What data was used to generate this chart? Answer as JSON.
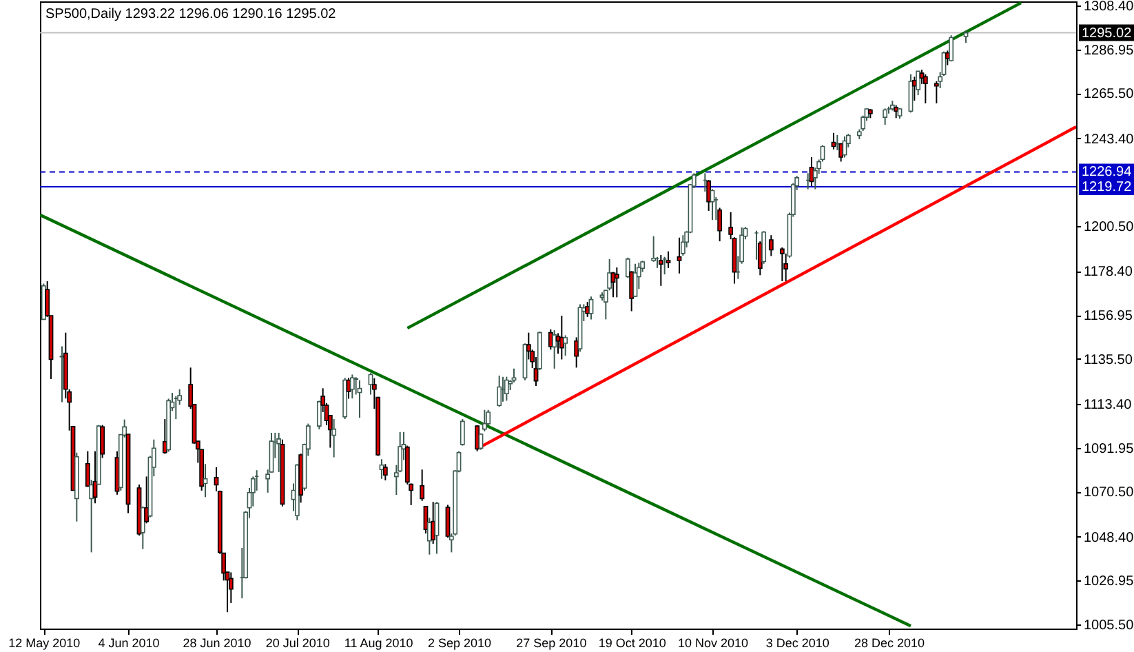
{
  "chart_data": {
    "type": "candlestick",
    "title": "SP500,Daily  1293.22 1296.06 1290.16 1295.02",
    "x": [
      "2010-05-12",
      "2010-05-13",
      "2010-05-14",
      "2010-05-17",
      "2010-05-18",
      "2010-05-19",
      "2010-05-20",
      "2010-05-21",
      "2010-05-24",
      "2010-05-25",
      "2010-05-26",
      "2010-05-27",
      "2010-05-28",
      "2010-06-01",
      "2010-06-02",
      "2010-06-03",
      "2010-06-04",
      "2010-06-07",
      "2010-06-08",
      "2010-06-09",
      "2010-06-10",
      "2010-06-11",
      "2010-06-14",
      "2010-06-15",
      "2010-06-16",
      "2010-06-17",
      "2010-06-18",
      "2010-06-21",
      "2010-06-22",
      "2010-06-23",
      "2010-06-24",
      "2010-06-25",
      "2010-06-28",
      "2010-06-29",
      "2010-06-30",
      "2010-07-01",
      "2010-07-02",
      "2010-07-05",
      "2010-07-06",
      "2010-07-07",
      "2010-07-08",
      "2010-07-09",
      "2010-07-12",
      "2010-07-13",
      "2010-07-14",
      "2010-07-15",
      "2010-07-16",
      "2010-07-19",
      "2010-07-20",
      "2010-07-21",
      "2010-07-22",
      "2010-07-23",
      "2010-07-26",
      "2010-07-27",
      "2010-07-28",
      "2010-07-29",
      "2010-07-30",
      "2010-08-02",
      "2010-08-03",
      "2010-08-04",
      "2010-08-05",
      "2010-08-06",
      "2010-08-09",
      "2010-08-10",
      "2010-08-11",
      "2010-08-12",
      "2010-08-13",
      "2010-08-16",
      "2010-08-17",
      "2010-08-18",
      "2010-08-19",
      "2010-08-20",
      "2010-08-23",
      "2010-08-24",
      "2010-08-25",
      "2010-08-26",
      "2010-08-27",
      "2010-08-30",
      "2010-08-31",
      "2010-09-01",
      "2010-09-02",
      "2010-09-03",
      "2010-09-07",
      "2010-09-08",
      "2010-09-09",
      "2010-09-10",
      "2010-09-13",
      "2010-09-14",
      "2010-09-15",
      "2010-09-16",
      "2010-09-17",
      "2010-09-20",
      "2010-09-21",
      "2010-09-22",
      "2010-09-23",
      "2010-09-24",
      "2010-09-27",
      "2010-09-28",
      "2010-09-29",
      "2010-09-30",
      "2010-10-01",
      "2010-10-04",
      "2010-10-05",
      "2010-10-06",
      "2010-10-07",
      "2010-10-08",
      "2010-10-11",
      "2010-10-12",
      "2010-10-13",
      "2010-10-14",
      "2010-10-15",
      "2010-10-18",
      "2010-10-19",
      "2010-10-20",
      "2010-10-21",
      "2010-10-22",
      "2010-10-25",
      "2010-10-26",
      "2010-10-27",
      "2010-10-28",
      "2010-10-29",
      "2010-11-01",
      "2010-11-02",
      "2010-11-03",
      "2010-11-04",
      "2010-11-05",
      "2010-11-08",
      "2010-11-09",
      "2010-11-10",
      "2010-11-11",
      "2010-11-12",
      "2010-11-15",
      "2010-11-16",
      "2010-11-17",
      "2010-11-18",
      "2010-11-19",
      "2010-11-22",
      "2010-11-23",
      "2010-11-24",
      "2010-11-26",
      "2010-11-29",
      "2010-11-30",
      "2010-12-01",
      "2010-12-02",
      "2010-12-03",
      "2010-12-06",
      "2010-12-07",
      "2010-12-08",
      "2010-12-09",
      "2010-12-10",
      "2010-12-13",
      "2010-12-14",
      "2010-12-15",
      "2010-12-16",
      "2010-12-17",
      "2010-12-20",
      "2010-12-21",
      "2010-12-22",
      "2010-12-23",
      "2010-12-27",
      "2010-12-28",
      "2010-12-29",
      "2010-12-30",
      "2010-12-31",
      "2011-01-03",
      "2011-01-04",
      "2011-01-05",
      "2011-01-06",
      "2011-01-07",
      "2011-01-10",
      "2011-01-11",
      "2011-01-12",
      "2011-01-13",
      "2011-01-14",
      "2011-01-18"
    ],
    "ohlc": [
      [
        1154.8,
        1172.3,
        1154.8,
        1171.2
      ],
      [
        1169.4,
        1173.5,
        1156,
        1156.6
      ],
      [
        1156.6,
        1156.6,
        1125.6,
        1135.2
      ],
      [
        1136.5,
        1141.6,
        1114.3,
        1136.8
      ],
      [
        1138.2,
        1148.3,
        1116.1,
        1120.6
      ],
      [
        1119.3,
        1120.6,
        1100.4,
        1114.3
      ],
      [
        1102.4,
        1102.4,
        1071.1,
        1071.1
      ],
      [
        1067.1,
        1089.6,
        1055.9,
        1087.6
      ],
      [
        1084.2,
        1090.3,
        1072.9,
        1073.2
      ],
      [
        1067.1,
        1076.3,
        1040.8,
        1073.8
      ],
      [
        1075.4,
        1090.3,
        1064.8,
        1067.8
      ],
      [
        1074.1,
        1103.1,
        1074.1,
        1102.6
      ],
      [
        1102.2,
        1103.1,
        1087,
        1088.9
      ],
      [
        1087.1,
        1090.3,
        1069,
        1070.7
      ],
      [
        1072.5,
        1098.4,
        1071,
        1098.4
      ],
      [
        1098.2,
        1105.8,
        1097,
        1102.2
      ],
      [
        1098.6,
        1098.6,
        1060,
        1064.4
      ],
      [
        1072.3,
        1074,
        1049,
        1049.8
      ],
      [
        1050.5,
        1063.3,
        1042.4,
        1062.6
      ],
      [
        1062.6,
        1077.9,
        1055,
        1055.9
      ],
      [
        1058.6,
        1088,
        1058,
        1087.3
      ],
      [
        1082.4,
        1096,
        1078,
        1091.8
      ],
      [
        1095,
        1106,
        1089,
        1089.6
      ],
      [
        1091,
        1116,
        1090,
        1115
      ],
      [
        1111.6,
        1118.8,
        1110,
        1114.3
      ],
      [
        1116.1,
        1117.2,
        1106,
        1116.1
      ],
      [
        1115.2,
        1120.6,
        1113,
        1117.5
      ],
      [
        1122.9,
        1131.2,
        1111,
        1112.3
      ],
      [
        1113.2,
        1113.2,
        1094,
        1094.3
      ],
      [
        1095.2,
        1095.2,
        1084.6,
        1091.4
      ],
      [
        1091.1,
        1091.1,
        1071,
        1073.2
      ],
      [
        1074.5,
        1084,
        1067.8,
        1076.8
      ],
      [
        1077.4,
        1082.4,
        1070.7,
        1073.8
      ],
      [
        1070.7,
        1071,
        1040,
        1040.8
      ],
      [
        1040.4,
        1040.4,
        1027,
        1030.7
      ],
      [
        1031.1,
        1031.1,
        1011.5,
        1027.3
      ],
      [
        1028,
        1031,
        1016,
        1022.8
      ],
      [
        1028.4,
        1043,
        1018.3,
        1028.4
      ],
      [
        1028.4,
        1061,
        1028,
        1060.4
      ],
      [
        1062.6,
        1072.3,
        1057.6,
        1070
      ],
      [
        1070,
        1077.9,
        1063.3,
        1076.8
      ],
      [
        1078,
        1081,
        1071,
        1078
      ],
      [
        1076.8,
        1081.3,
        1070,
        1079
      ],
      [
        1080.1,
        1099.3,
        1080,
        1095.2
      ],
      [
        1094.8,
        1099.3,
        1086.9,
        1094.8
      ],
      [
        1094,
        1099.3,
        1080.1,
        1096.3
      ],
      [
        1093.6,
        1096,
        1063.3,
        1064.4
      ],
      [
        1066.7,
        1074.5,
        1061,
        1071.1
      ],
      [
        1058.8,
        1084,
        1056.5,
        1083.5
      ],
      [
        1088.5,
        1089.1,
        1065.1,
        1068.9
      ],
      [
        1072.2,
        1094,
        1071,
        1093.6
      ],
      [
        1091.4,
        1103.8,
        1088,
        1102.6
      ],
      [
        1102.6,
        1115,
        1101,
        1114.5
      ],
      [
        1117.2,
        1121.1,
        1109.4,
        1112.8
      ],
      [
        1112.8,
        1113.9,
        1103,
        1105.3
      ],
      [
        1107.8,
        1108,
        1092,
        1100.8
      ],
      [
        1098.1,
        1106,
        1087.3,
        1101.1
      ],
      [
        1107.1,
        1126.2,
        1106,
        1125.1
      ],
      [
        1125.1,
        1126.2,
        1116,
        1119.5
      ],
      [
        1120.6,
        1127.8,
        1116.1,
        1126.2
      ],
      [
        1125.5,
        1126.5,
        1118,
        1125.8
      ],
      [
        1119,
        1125,
        1106.7,
        1121
      ],
      [
        1122.9,
        1128.5,
        1118,
        1127.8
      ],
      [
        1122.9,
        1126,
        1111,
        1120.6
      ],
      [
        1116.6,
        1116.9,
        1088,
        1088.5
      ],
      [
        1081.3,
        1086.4,
        1076.8,
        1083.5
      ],
      [
        1082.4,
        1084,
        1076,
        1078.6
      ],
      [
        1077.9,
        1083.5,
        1068.9,
        1079.7
      ],
      [
        1080.6,
        1099.7,
        1080,
        1092.5
      ],
      [
        1091.4,
        1099.7,
        1086,
        1093.6
      ],
      [
        1092.3,
        1093,
        1074,
        1075.2
      ],
      [
        1074.1,
        1074.5,
        1063.9,
        1071.1
      ],
      [
        1073.4,
        1081.3,
        1066,
        1067.1
      ],
      [
        1063.3,
        1063.5,
        1050,
        1052
      ],
      [
        1046.4,
        1057.7,
        1039.7,
        1055.4
      ],
      [
        1055.9,
        1065.5,
        1045,
        1046.9
      ],
      [
        1049.1,
        1065.5,
        1040.1,
        1064.8
      ],
      [
        1062.8,
        1064,
        1048,
        1048.7
      ],
      [
        1046.9,
        1050,
        1040.8,
        1048.7
      ],
      [
        1049.8,
        1081,
        1049,
        1080.6
      ],
      [
        1080.6,
        1090.3,
        1080,
        1089.6
      ],
      [
        1093.6,
        1106,
        1093,
        1104.9
      ],
      [
        1102.6,
        1103,
        1090.3,
        1091.4
      ],
      [
        1091.8,
        1099,
        1091,
        1098.6
      ],
      [
        1101.1,
        1110.5,
        1100,
        1103.8
      ],
      [
        1103.7,
        1110.5,
        1103,
        1109.4
      ],
      [
        1112.7,
        1127.3,
        1112,
        1121.7
      ],
      [
        1120.6,
        1126.7,
        1114.5,
        1120.6
      ],
      [
        1118.4,
        1126.7,
        1115,
        1125.1
      ],
      [
        1123.3,
        1125.1,
        1120.2,
        1124.4
      ],
      [
        1125.1,
        1130.7,
        1124,
        1126.2
      ],
      [
        1126.2,
        1143,
        1125,
        1142.4
      ],
      [
        1142.4,
        1148.3,
        1135.2,
        1139.3
      ],
      [
        1139.1,
        1140,
        1131,
        1134.1
      ],
      [
        1130.7,
        1136.4,
        1122.2,
        1124.7
      ],
      [
        1130.7,
        1148.8,
        1130,
        1148.3
      ],
      [
        1148.3,
        1149.9,
        1140,
        1141.5
      ],
      [
        1141.3,
        1149.5,
        1130.7,
        1147.2
      ],
      [
        1146.5,
        1148,
        1138,
        1144.2
      ],
      [
        1146,
        1156.6,
        1135.2,
        1140.9
      ],
      [
        1143.1,
        1147,
        1137,
        1145.8
      ],
      [
        1144.2,
        1146,
        1131.2,
        1136.8
      ],
      [
        1140.4,
        1162.2,
        1139,
        1160.6
      ],
      [
        1158.8,
        1162.2,
        1153.9,
        1160.4
      ],
      [
        1161.1,
        1163.3,
        1156,
        1157.7
      ],
      [
        1157.7,
        1166,
        1154.8,
        1164.5
      ],
      [
        1165.6,
        1168,
        1164,
        1166.6
      ],
      [
        1163.3,
        1169,
        1154.8,
        1169
      ],
      [
        1170.1,
        1184.3,
        1169,
        1177.5
      ],
      [
        1177.5,
        1178,
        1165.6,
        1173
      ],
      [
        1176.8,
        1180.2,
        1165.6,
        1175
      ],
      [
        1175.7,
        1185,
        1175,
        1184.3
      ],
      [
        1178,
        1178.4,
        1158.8,
        1165.1
      ],
      [
        1166.1,
        1182,
        1166,
        1177.5
      ],
      [
        1175.7,
        1182.5,
        1169.7,
        1180.2
      ],
      [
        1179.8,
        1183.5,
        1178,
        1182.9
      ],
      [
        1183.6,
        1195.5,
        1183,
        1184.7
      ],
      [
        1184.7,
        1185.4,
        1180,
        1184.7
      ],
      [
        1183.6,
        1186.3,
        1171.2,
        1181.8
      ],
      [
        1184.3,
        1185.4,
        1176.8,
        1184.3
      ],
      [
        1183.6,
        1188.1,
        1180,
        1182.5
      ],
      [
        1185.4,
        1194.8,
        1177.3,
        1183.6
      ],
      [
        1187,
        1196,
        1186,
        1192.6
      ],
      [
        1192.6,
        1198,
        1190,
        1197.5
      ],
      [
        1197.5,
        1221,
        1197,
        1220.7
      ],
      [
        1220,
        1226.3,
        1219,
        1225.4
      ],
      [
        1222.9,
        1226.3,
        1217.3,
        1222.9
      ],
      [
        1222.5,
        1223,
        1207.9,
        1212.4
      ],
      [
        1212.4,
        1218.5,
        1203.4,
        1217.8
      ],
      [
        1213.3,
        1214.6,
        1203.4,
        1213.3
      ],
      [
        1208.3,
        1209.4,
        1193,
        1198.2
      ],
      [
        1199.8,
        1207.2,
        1194,
        1196.4
      ],
      [
        1194.4,
        1195,
        1172.3,
        1178
      ],
      [
        1178,
        1185.8,
        1174.6,
        1178
      ],
      [
        1183.1,
        1199.8,
        1182,
        1196
      ],
      [
        1195.5,
        1200,
        1194,
        1199.3
      ],
      [
        1197.1,
        1198.2,
        1184,
        1197.1
      ],
      [
        1192.1,
        1193,
        1176.4,
        1179.8
      ],
      [
        1183.1,
        1198,
        1182,
        1197.5
      ],
      [
        1193.7,
        1196,
        1185.8,
        1188.8
      ],
      [
        1189.2,
        1190,
        1173.5,
        1187
      ],
      [
        1182,
        1187,
        1173.5,
        1179.5
      ],
      [
        1185.8,
        1207,
        1185,
        1206.1
      ],
      [
        1206.1,
        1221.5,
        1205,
        1220.7
      ],
      [
        1220.2,
        1225,
        1218,
        1224.1
      ],
      [
        1222.9,
        1226.3,
        1218.5,
        1222.9
      ],
      [
        1229.2,
        1234.2,
        1220,
        1222.2
      ],
      [
        1224.1,
        1229,
        1218.5,
        1227.5
      ],
      [
        1228.6,
        1233,
        1226,
        1231.9
      ],
      [
        1233.1,
        1240,
        1232,
        1239.4
      ],
      [
        1241.4,
        1246.1,
        1238,
        1239.4
      ],
      [
        1240.7,
        1245,
        1237.6,
        1240.7
      ],
      [
        1240.7,
        1241,
        1232,
        1234.2
      ],
      [
        1235.3,
        1244.3,
        1234,
        1242.1
      ],
      [
        1240.9,
        1245.6,
        1239,
        1244.8
      ],
      [
        1244.8,
        1247.8,
        1243,
        1246.6
      ],
      [
        1248.1,
        1254.5,
        1247,
        1253.7
      ],
      [
        1253.7,
        1258,
        1252,
        1257.8
      ],
      [
        1257.3,
        1257.8,
        1253.3,
        1255.5
      ],
      [
        1253.7,
        1258,
        1250,
        1257.3
      ],
      [
        1257.8,
        1258.9,
        1255.5,
        1257.8
      ],
      [
        1257.8,
        1261.8,
        1257,
        1259.6
      ],
      [
        1258.5,
        1259.6,
        1253.3,
        1256.7
      ],
      [
        1254.4,
        1258,
        1253,
        1257.8
      ],
      [
        1256.7,
        1274.7,
        1256,
        1271.3
      ],
      [
        1271.7,
        1273.5,
        1261.8,
        1269
      ],
      [
        1267.2,
        1276.2,
        1264.5,
        1276.2
      ],
      [
        1275.3,
        1276.9,
        1270,
        1272.9
      ],
      [
        1273.5,
        1274.7,
        1260.5,
        1270.2
      ],
      [
        1270.2,
        1271.3,
        1260.5,
        1269
      ],
      [
        1271.3,
        1275.8,
        1267.9,
        1273.5
      ],
      [
        1274.7,
        1285.9,
        1274,
        1285.2
      ],
      [
        1285.2,
        1286.3,
        1279.2,
        1282.5
      ],
      [
        1281.4,
        1293.8,
        1281,
        1292.7
      ],
      [
        1293.22,
        1296.06,
        1290.16,
        1295.02
      ]
    ],
    "series": [
      {
        "type": "line",
        "color": "#006f00",
        "x": [
          "2010-05-11",
          "2011-01-03"
        ],
        "values": [
          1205.9,
          1004.8
        ]
      },
      {
        "type": "line",
        "color": "#006f00",
        "x": [
          "2010-08-19",
          "2011-02-02"
        ],
        "values": [
          1150.5,
          1309.7
        ]
      },
      {
        "type": "line",
        "color": "#ff0000",
        "x": [
          "2010-09-08",
          "2011-02-17"
        ],
        "values": [
          1092.5,
          1249.0
        ]
      }
    ],
    "xlim": [
      "2010-05-11",
      "2011-02-17"
    ],
    "xticks": [
      {
        "value": "2010-05-12",
        "label": "12 May 2010"
      },
      {
        "value": "2010-06-04",
        "label": "4 Jun 2010"
      },
      {
        "value": "2010-06-28",
        "label": "28 Jun 2010"
      },
      {
        "value": "2010-07-20",
        "label": "20 Jul 2010"
      },
      {
        "value": "2010-08-11",
        "label": "11 Aug 2010"
      },
      {
        "value": "2010-09-02",
        "label": "2 Sep 2010"
      },
      {
        "value": "2010-09-27",
        "label": "27 Sep 2010"
      },
      {
        "value": "2010-10-19",
        "label": "19 Oct 2010"
      },
      {
        "value": "2010-11-10",
        "label": "10 Nov 2010"
      },
      {
        "value": "2010-12-03",
        "label": "3 Dec 2010"
      },
      {
        "value": "2010-12-28",
        "label": "28 Dec 2010"
      }
    ],
    "ylim": [
      1003.5,
      1310.4
    ],
    "yticks": [
      {
        "value": 1308.4,
        "label": "1308.40"
      },
      {
        "value": 1286.95,
        "label": "1286.95"
      },
      {
        "value": 1265.5,
        "label": "1265.50"
      },
      {
        "value": 1243.4,
        "label": "1243.40"
      },
      {
        "value": 1200.5,
        "label": "1200.50"
      },
      {
        "value": 1178.4,
        "label": "1178.40"
      },
      {
        "value": 1156.95,
        "label": "1156.95"
      },
      {
        "value": 1135.5,
        "label": "1135.50"
      },
      {
        "value": 1113.4,
        "label": "1113.40"
      },
      {
        "value": 1091.95,
        "label": "1091.95"
      },
      {
        "value": 1070.5,
        "label": "1070.50"
      },
      {
        "value": 1048.4,
        "label": "1048.40"
      },
      {
        "value": 1026.95,
        "label": "1026.95"
      },
      {
        "value": 1005.5,
        "label": "1005.50"
      }
    ],
    "ref_lines": [
      {
        "axis": "y",
        "value": 1295.02,
        "label": "1295.02",
        "color": "#c0c0c0"
      },
      {
        "axis": "y",
        "value": 1226.94,
        "label": "1226.94",
        "color": "#0000c8",
        "line_style": "dashed"
      },
      {
        "axis": "y",
        "value": 1219.72,
        "label": "1219.72",
        "color": "#0000c8"
      }
    ]
  }
}
